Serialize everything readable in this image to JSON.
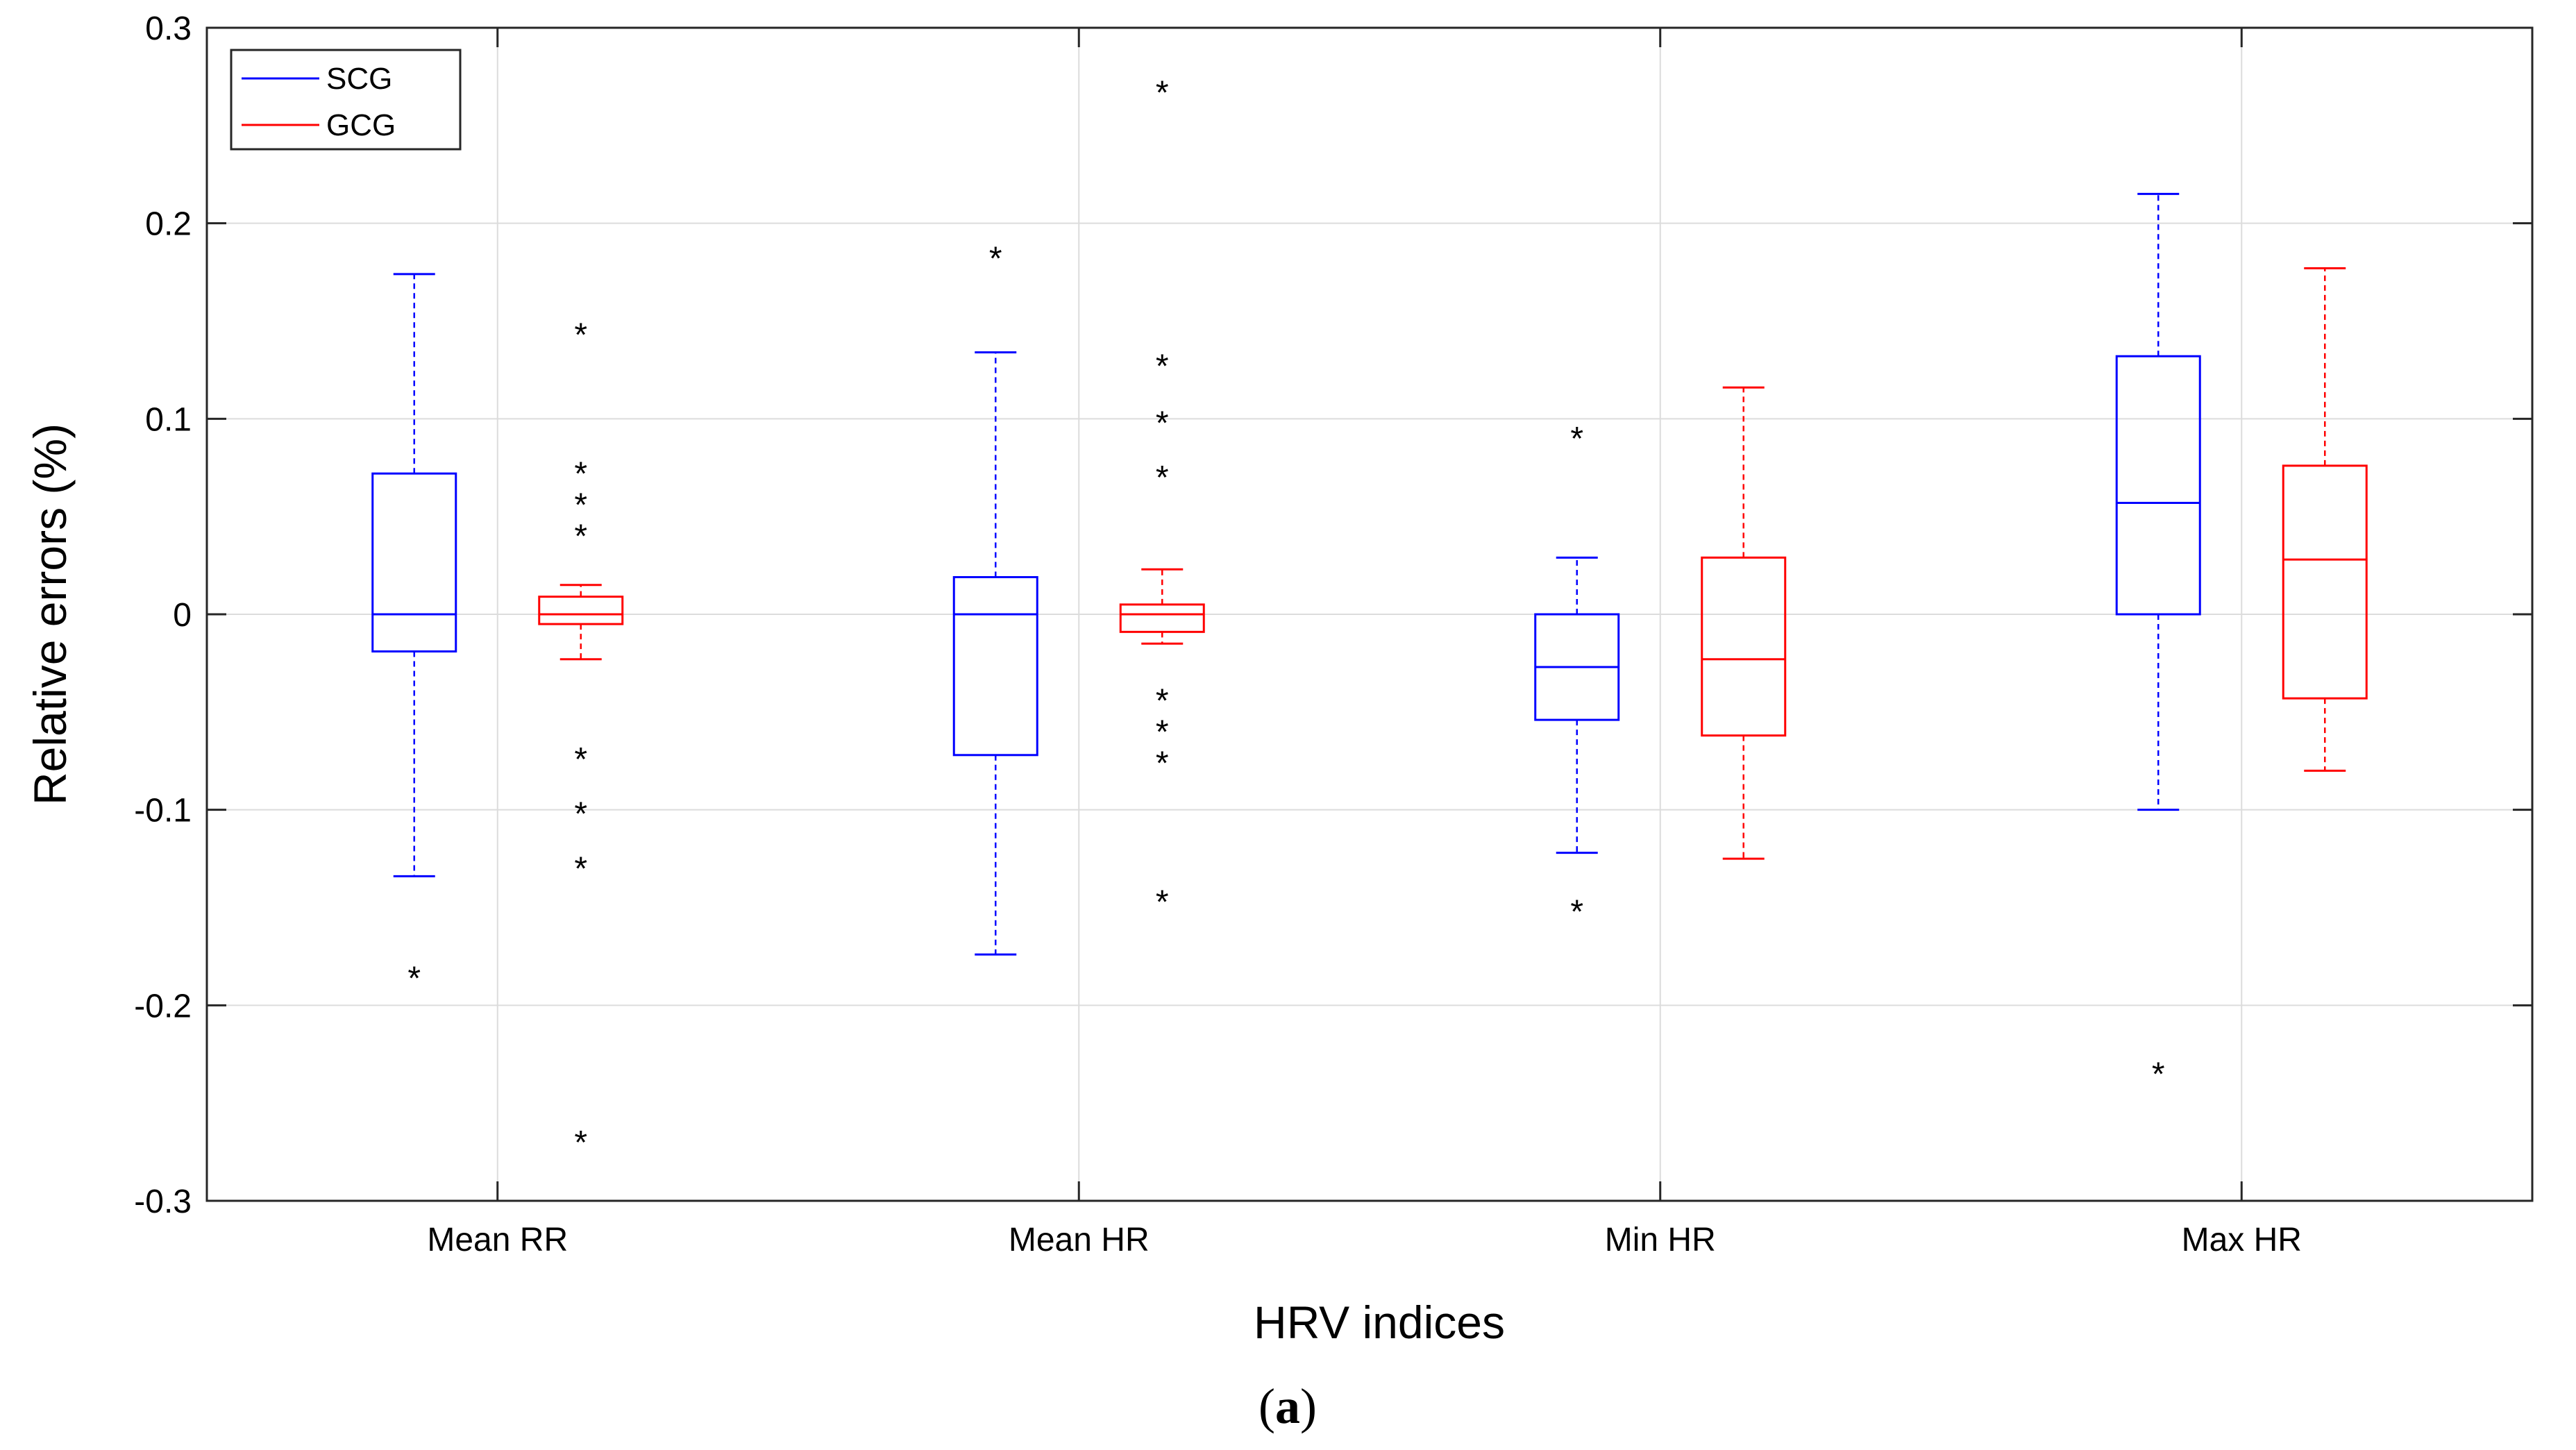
{
  "chart_data": {
    "type": "boxplot",
    "title": "",
    "xlabel": "HRV indices",
    "ylabel": "Relative errors (%)",
    "ylim": [
      -0.3,
      0.3
    ],
    "yticks": [
      -0.3,
      -0.2,
      -0.1,
      0,
      0.1,
      0.2,
      0.3
    ],
    "ytick_labels": [
      "-0.3",
      "-0.2",
      "-0.1",
      "0",
      "0.1",
      "0.2",
      "0.3"
    ],
    "categories": [
      "Mean RR",
      "Mean HR",
      "Min HR",
      "Max HR"
    ],
    "grid": true,
    "legend_position": "top-left",
    "series": [
      {
        "name": "SCG",
        "color": "#0000ff",
        "boxes": [
          {
            "whisker_low": -0.134,
            "q1": -0.019,
            "median": 0.0,
            "q3": 0.072,
            "whisker_high": 0.174,
            "outliers": [
              -0.184
            ]
          },
          {
            "whisker_low": -0.174,
            "q1": -0.072,
            "median": 0.0,
            "q3": 0.019,
            "whisker_high": 0.134,
            "outliers": [
              0.184
            ]
          },
          {
            "whisker_low": -0.122,
            "q1": -0.054,
            "median": -0.027,
            "q3": 0.0,
            "whisker_high": 0.029,
            "outliers": [
              0.092,
              -0.15
            ]
          },
          {
            "whisker_low": -0.1,
            "q1": 0.0,
            "median": 0.057,
            "q3": 0.132,
            "whisker_high": 0.215,
            "outliers": [
              -0.233
            ]
          }
        ]
      },
      {
        "name": "GCG",
        "color": "#ff0000",
        "boxes": [
          {
            "whisker_low": -0.023,
            "q1": -0.005,
            "median": 0.0,
            "q3": 0.009,
            "whisker_high": 0.015,
            "outliers": [
              0.145,
              0.074,
              0.058,
              0.042,
              -0.072,
              -0.1,
              -0.128,
              -0.268
            ]
          },
          {
            "whisker_low": -0.015,
            "q1": -0.009,
            "median": 0.0,
            "q3": 0.005,
            "whisker_high": 0.023,
            "outliers": [
              0.269,
              0.129,
              0.1,
              0.072,
              -0.042,
              -0.058,
              -0.074,
              -0.145
            ]
          },
          {
            "whisker_low": -0.125,
            "q1": -0.062,
            "median": -0.023,
            "q3": 0.029,
            "whisker_high": 0.116,
            "outliers": []
          },
          {
            "whisker_low": -0.08,
            "q1": -0.043,
            "median": 0.028,
            "q3": 0.076,
            "whisker_high": 0.177,
            "outliers": []
          }
        ]
      }
    ],
    "outlier_marker": "*"
  },
  "caption": {
    "open": "(",
    "letter": "a",
    "close": ")"
  }
}
